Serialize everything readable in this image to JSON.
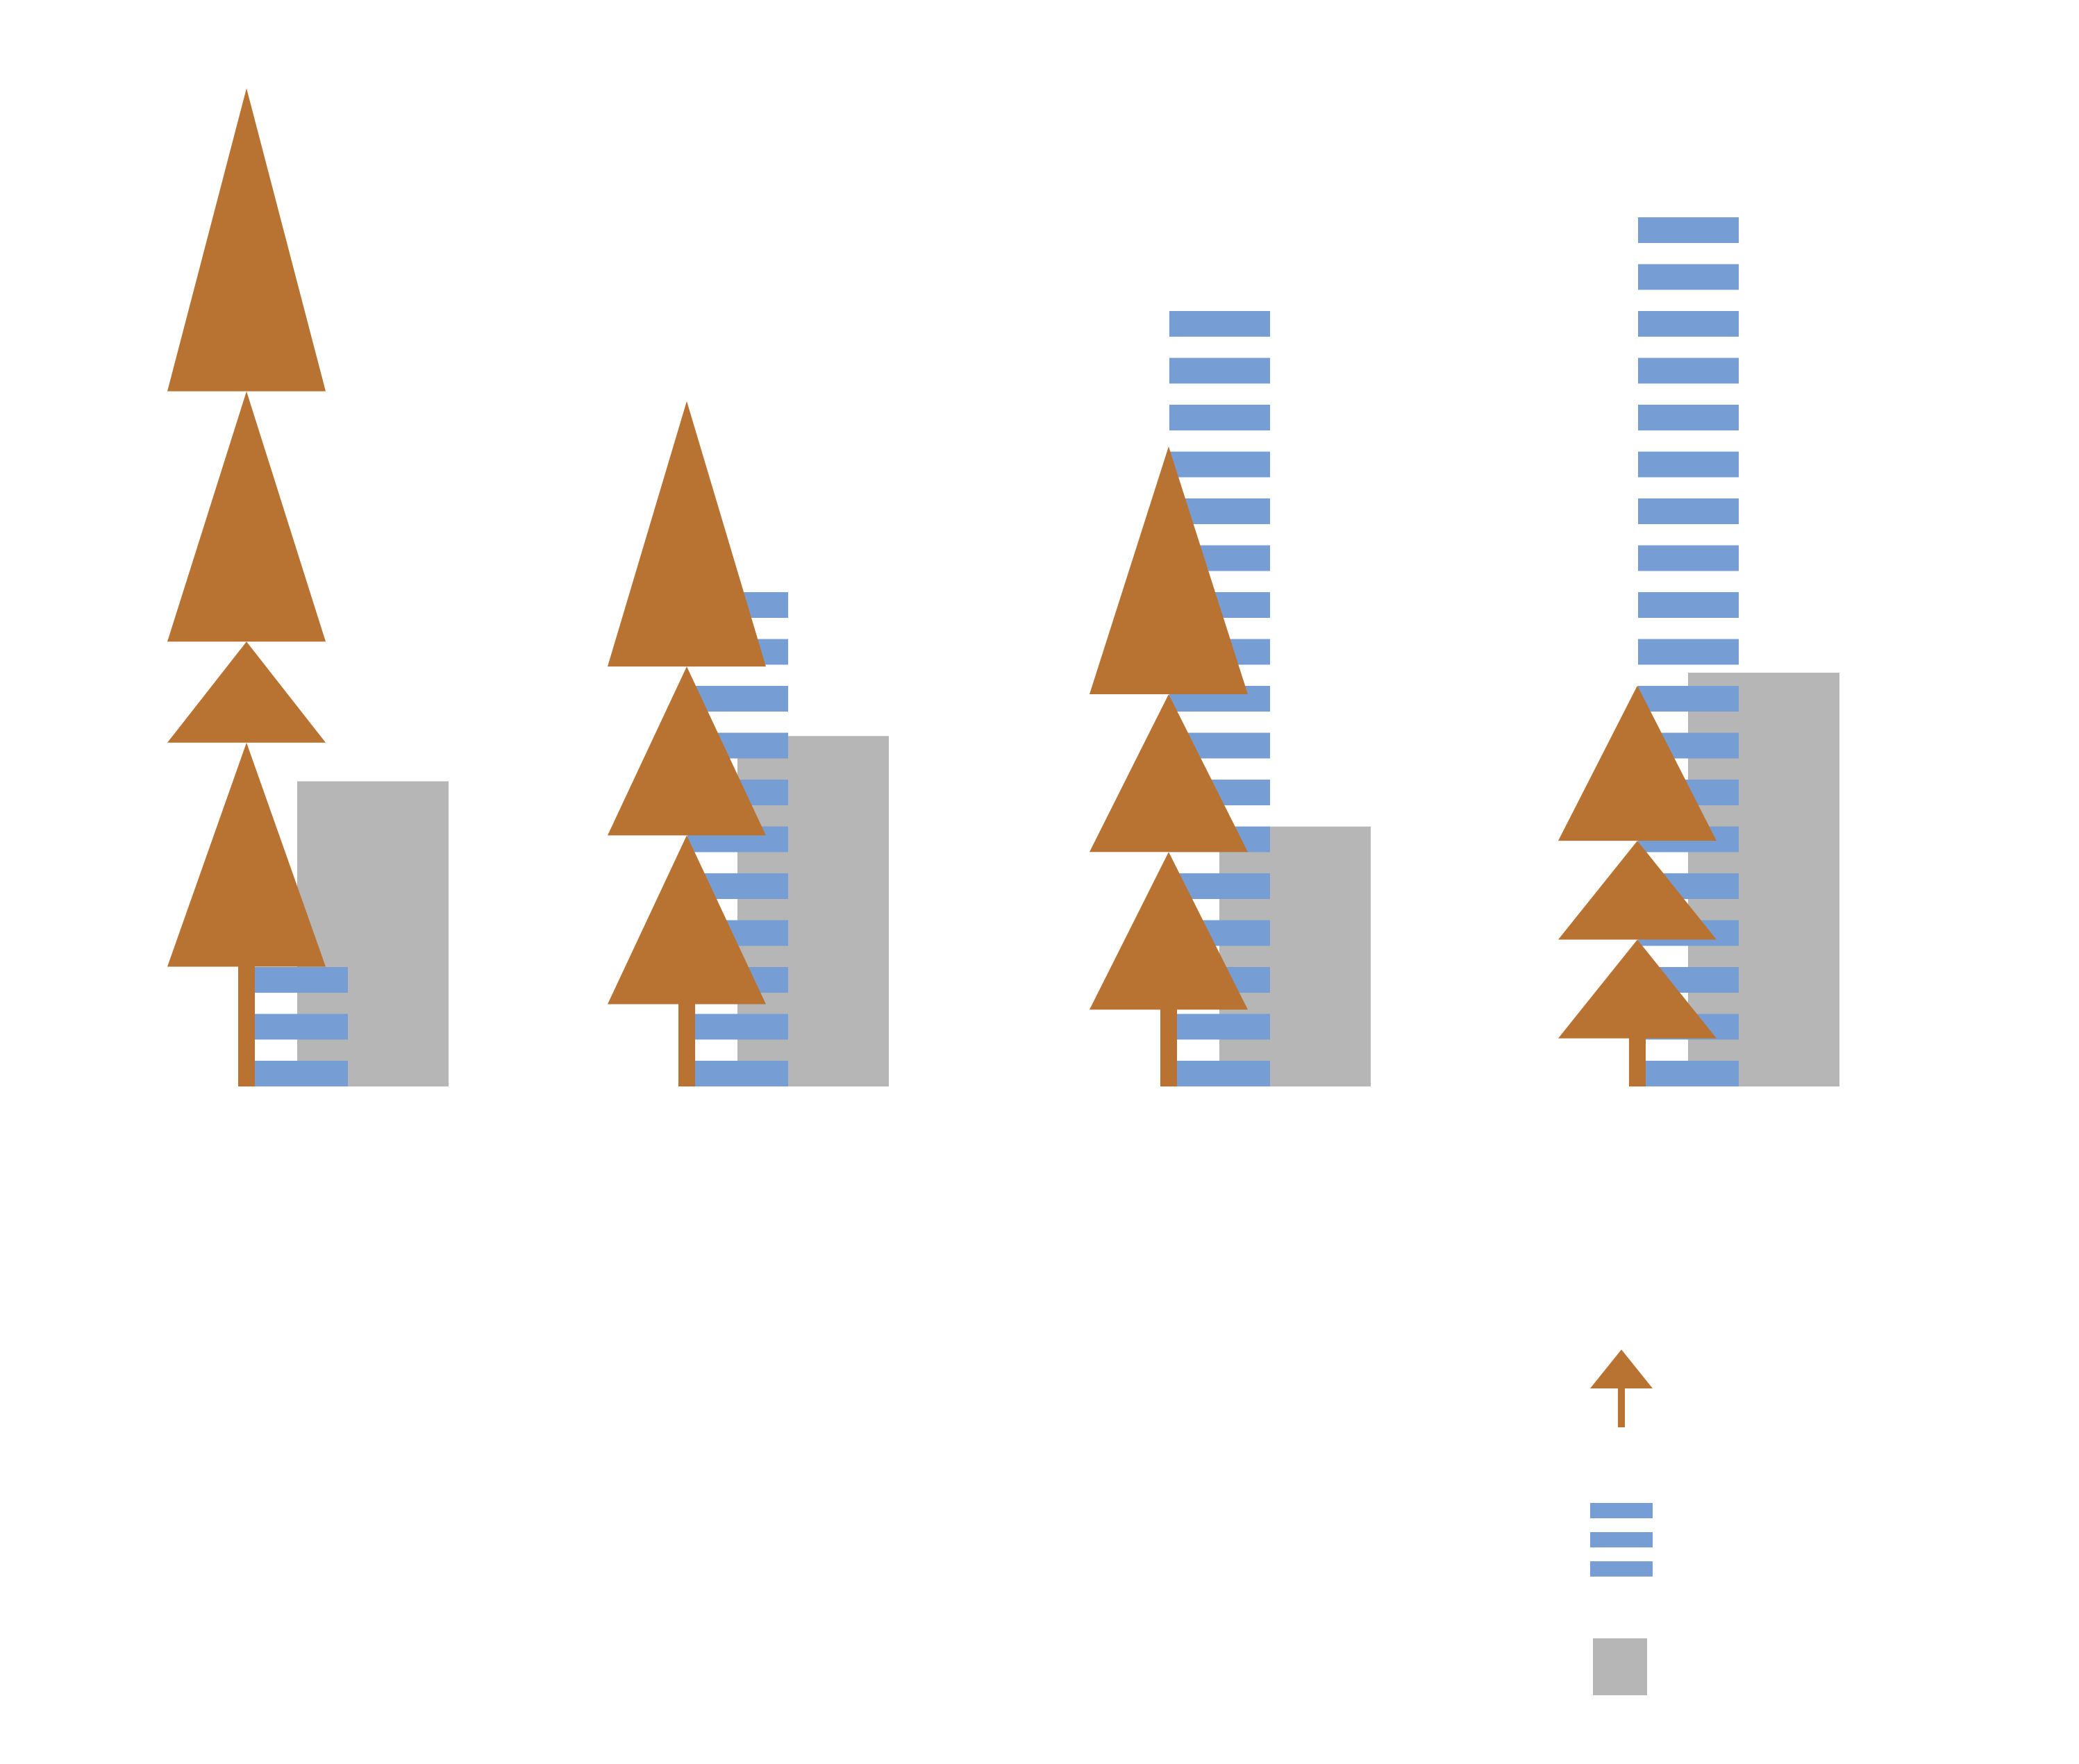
{
  "colors": {
    "tree": "#b87333",
    "stripes": "#779ed4",
    "block": "#b5b6b5",
    "background": "#ffffff"
  },
  "chart_data": {
    "type": "bar",
    "subtype": "pictograph-grouped-bar",
    "title": "",
    "xlabel": "",
    "ylabel": "",
    "axes_visible": false,
    "grid": false,
    "legend_position": "bottom-right",
    "categories": [
      "",
      "",
      "",
      ""
    ],
    "ylim": [
      0,
      800
    ],
    "series": [
      {
        "icon": "tree-icon",
        "values": [
          772,
          530,
          495,
          310
        ]
      },
      {
        "icon": "stripes-icon",
        "values": [
          125,
          403,
          605,
          690
        ]
      },
      {
        "icon": "block-icon",
        "values": [
          236,
          271,
          201,
          320
        ]
      }
    ]
  }
}
